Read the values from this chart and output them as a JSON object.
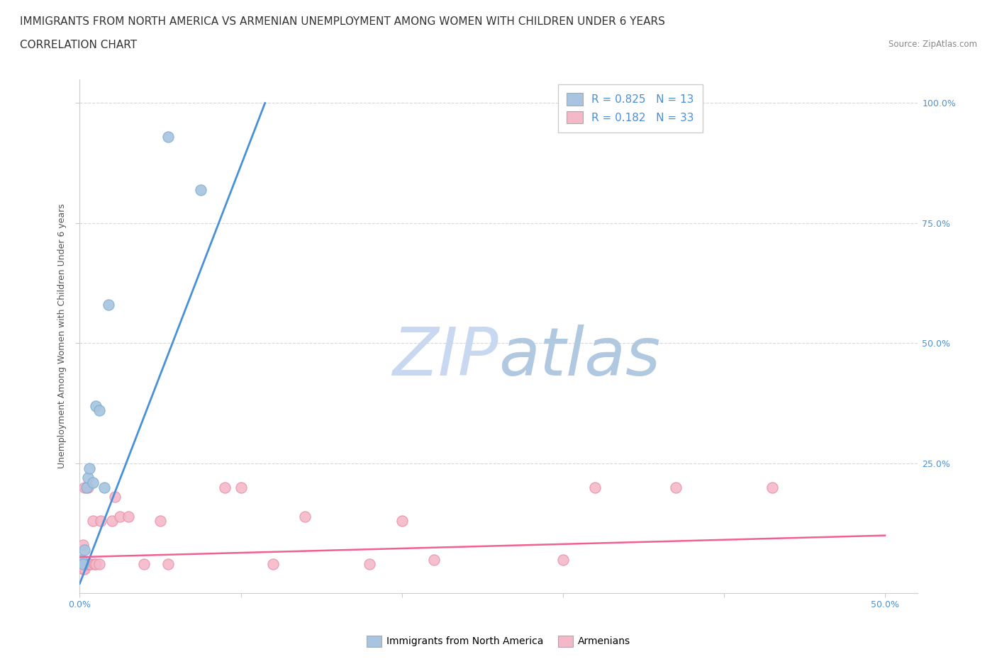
{
  "title_line1": "IMMIGRANTS FROM NORTH AMERICA VS ARMENIAN UNEMPLOYMENT AMONG WOMEN WITH CHILDREN UNDER 6 YEARS",
  "title_line2": "CORRELATION CHART",
  "source_text": "Source: ZipAtlas.com",
  "ylabel_label": "Unemployment Among Women with Children Under 6 years",
  "right_yticks": [
    "100.0%",
    "75.0%",
    "50.0%",
    "25.0%"
  ],
  "right_ytick_vals": [
    1.0,
    0.75,
    0.5,
    0.25
  ],
  "blue_scatter_x": [
    0.001,
    0.002,
    0.003,
    0.004,
    0.005,
    0.006,
    0.008,
    0.01,
    0.012,
    0.015,
    0.018,
    0.055,
    0.075
  ],
  "blue_scatter_y": [
    0.05,
    0.04,
    0.07,
    0.2,
    0.22,
    0.24,
    0.21,
    0.37,
    0.36,
    0.2,
    0.58,
    0.93,
    0.82
  ],
  "pink_scatter_x": [
    0.001,
    0.002,
    0.002,
    0.003,
    0.003,
    0.004,
    0.005,
    0.005,
    0.006,
    0.007,
    0.008,
    0.009,
    0.01,
    0.012,
    0.013,
    0.02,
    0.022,
    0.025,
    0.03,
    0.04,
    0.05,
    0.055,
    0.09,
    0.1,
    0.12,
    0.14,
    0.18,
    0.2,
    0.22,
    0.3,
    0.32,
    0.37,
    0.43
  ],
  "pink_scatter_y": [
    0.04,
    0.03,
    0.08,
    0.03,
    0.2,
    0.04,
    0.04,
    0.2,
    0.04,
    0.04,
    0.13,
    0.04,
    0.04,
    0.04,
    0.13,
    0.13,
    0.18,
    0.14,
    0.14,
    0.04,
    0.13,
    0.04,
    0.2,
    0.2,
    0.04,
    0.14,
    0.04,
    0.13,
    0.05,
    0.05,
    0.2,
    0.2,
    0.2
  ],
  "blue_line_x": [
    0.0,
    0.115
  ],
  "blue_line_y": [
    0.0,
    1.0
  ],
  "pink_line_x": [
    0.0,
    0.5
  ],
  "pink_line_y": [
    0.055,
    0.1
  ],
  "R_blue": 0.825,
  "N_blue": 13,
  "R_pink": 0.182,
  "N_pink": 33,
  "blue_color": "#a8c4e0",
  "blue_line_color": "#4a90d9",
  "pink_color": "#f4b8c8",
  "pink_line_color": "#f06090",
  "scatter_blue_edge": "#7aafd0",
  "scatter_pink_edge": "#e890a8",
  "title_fontsize": 11,
  "subtitle_fontsize": 11,
  "axis_label_fontsize": 9,
  "tick_fontsize": 9,
  "legend_fontsize": 11,
  "watermark_text_1": "ZIP",
  "watermark_text_2": "atlas",
  "watermark_color_1": "#c8d8f0",
  "watermark_color_2": "#b0c8e0",
  "xlim": [
    0.0,
    0.52
  ],
  "ylim": [
    -0.02,
    1.05
  ],
  "grid_color": "#d8d8d8",
  "background_color": "#ffffff"
}
